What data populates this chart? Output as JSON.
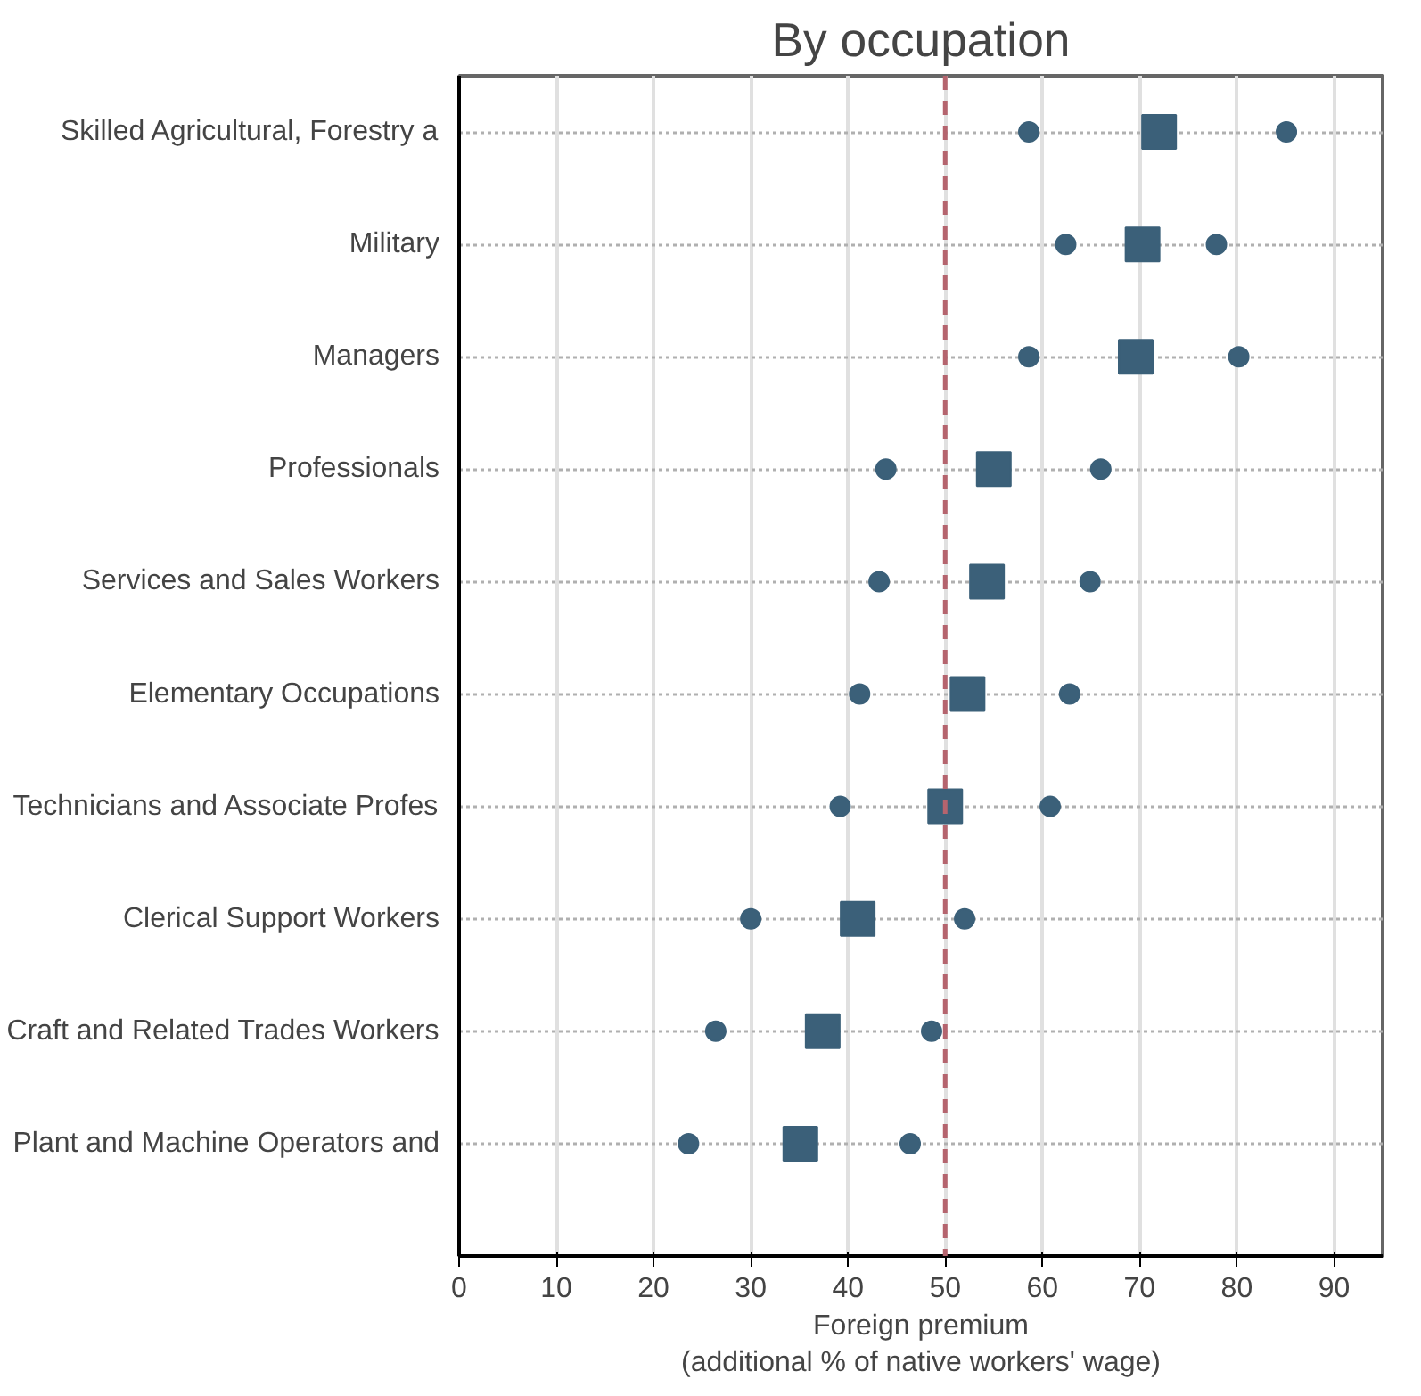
{
  "chart_data": {
    "type": "scatter",
    "orientation": "horizontal",
    "title": "By occupation",
    "xlabel": "Foreign premium\n(additional % of native workers' wage)",
    "categories": [
      "Skilled Agricultural, Forestry a",
      "Military",
      "Managers",
      "Professionals",
      "Services and Sales Workers",
      "Elementary Occupations",
      "Technicians and Associate Profes",
      "Clerical Support Workers",
      "Craft and Related Trades Workers",
      "Plant and Machine Operators and"
    ],
    "series": [
      {
        "color": "#3b6079",
        "marker": "circle",
        "values": [
          58.6,
          62.4,
          58.6,
          43.9,
          43.2,
          41.2,
          39.2,
          30.0,
          26.4,
          23.6
        ]
      },
      {
        "color": "#3b6079",
        "marker": "square",
        "values": [
          72.0,
          70.3,
          69.6,
          55.0,
          54.3,
          52.3,
          50.0,
          41.0,
          37.4,
          35.1
        ]
      },
      {
        "color": "#3b6079",
        "marker": "circle",
        "values": [
          85.1,
          77.9,
          80.2,
          66.0,
          64.9,
          62.8,
          60.8,
          52.0,
          48.6,
          46.4
        ]
      }
    ],
    "xlim": [
      0,
      95
    ],
    "xticks": [
      0,
      10,
      20,
      30,
      40,
      50,
      60,
      70,
      80,
      90
    ],
    "grid": true,
    "ref_lines": [
      {
        "axis": "x",
        "value": 50,
        "color": "#b5646e",
        "line_style": "dashed"
      }
    ]
  }
}
